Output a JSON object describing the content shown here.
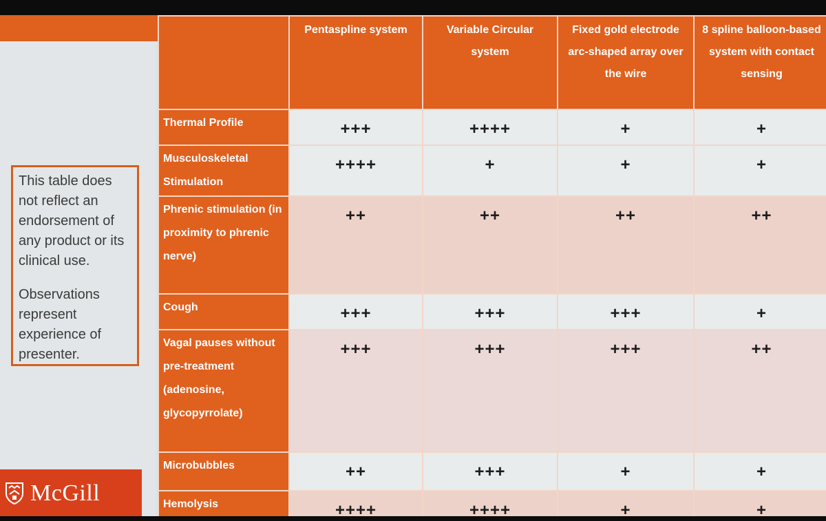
{
  "disclaimer": {
    "line1": "This table does not reflect an endorsement of any product or its clinical use.",
    "line2": "Observations represent experience of presenter."
  },
  "logo": {
    "text": "McGill",
    "brand_color": "#d8401c",
    "icon": "shield-icon"
  },
  "table": {
    "columns": [
      "Pentaspline system",
      "Variable Circular system",
      "Fixed gold electrode arc-shaped array over the wire",
      "8 spline balloon-based system with contact sensing"
    ],
    "rows": [
      {
        "label": "Thermal Profile",
        "values": [
          "+++",
          "++++",
          "+",
          "+"
        ]
      },
      {
        "label": "Musculoskeletal Stimulation",
        "values": [
          "++++",
          "+",
          "+",
          "+"
        ]
      },
      {
        "label": "Phrenic stimulation (in proximity to phrenic nerve)",
        "values": [
          "++",
          "++",
          "++",
          "++"
        ]
      },
      {
        "label": "Cough",
        "values": [
          "+++",
          "+++",
          "+++",
          "+"
        ]
      },
      {
        "label": "Vagal pauses without pre-treatment (adenosine, glycopyrrolate)",
        "values": [
          "+++",
          "+++",
          "+++",
          "++"
        ]
      },
      {
        "label": "Microbubbles",
        "values": [
          "++",
          "+++",
          "+",
          "+"
        ]
      },
      {
        "label": "Hemolysis",
        "values": [
          "++++",
          "++++",
          "+",
          "+"
        ]
      }
    ]
  },
  "colors": {
    "header_orange": "#e0601e",
    "row_light": "#e8ecec",
    "row_pink": "#ecd2c8"
  }
}
